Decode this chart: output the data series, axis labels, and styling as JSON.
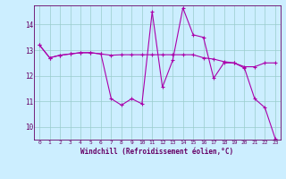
{
  "xlabel": "Windchill (Refroidissement éolien,°C)",
  "bg_color": "#cceeff",
  "line_color": "#aa00aa",
  "grid_color": "#99cccc",
  "axis_color": "#660066",
  "tick_color": "#660066",
  "hours": [
    0,
    1,
    2,
    3,
    4,
    5,
    6,
    7,
    8,
    9,
    10,
    11,
    12,
    13,
    14,
    15,
    16,
    17,
    18,
    19,
    20,
    21,
    22,
    23
  ],
  "temp_line": [
    13.2,
    12.7,
    12.8,
    12.85,
    12.9,
    12.9,
    12.85,
    12.8,
    12.82,
    12.82,
    12.82,
    12.82,
    12.82,
    12.82,
    12.82,
    12.82,
    12.7,
    12.65,
    12.55,
    12.5,
    12.35,
    12.35,
    12.5,
    12.5
  ],
  "windchill_line": [
    13.2,
    12.7,
    12.8,
    12.85,
    12.9,
    12.9,
    12.85,
    11.1,
    10.85,
    11.1,
    10.9,
    14.5,
    11.55,
    12.6,
    14.65,
    13.6,
    13.5,
    11.9,
    12.5,
    12.5,
    12.3,
    11.1,
    10.75,
    9.55
  ],
  "ylim": [
    9.5,
    14.75
  ],
  "yticks": [
    10,
    11,
    12,
    13,
    14
  ],
  "xlim": [
    -0.5,
    23.5
  ],
  "marker_size": 3,
  "line_width": 0.8
}
